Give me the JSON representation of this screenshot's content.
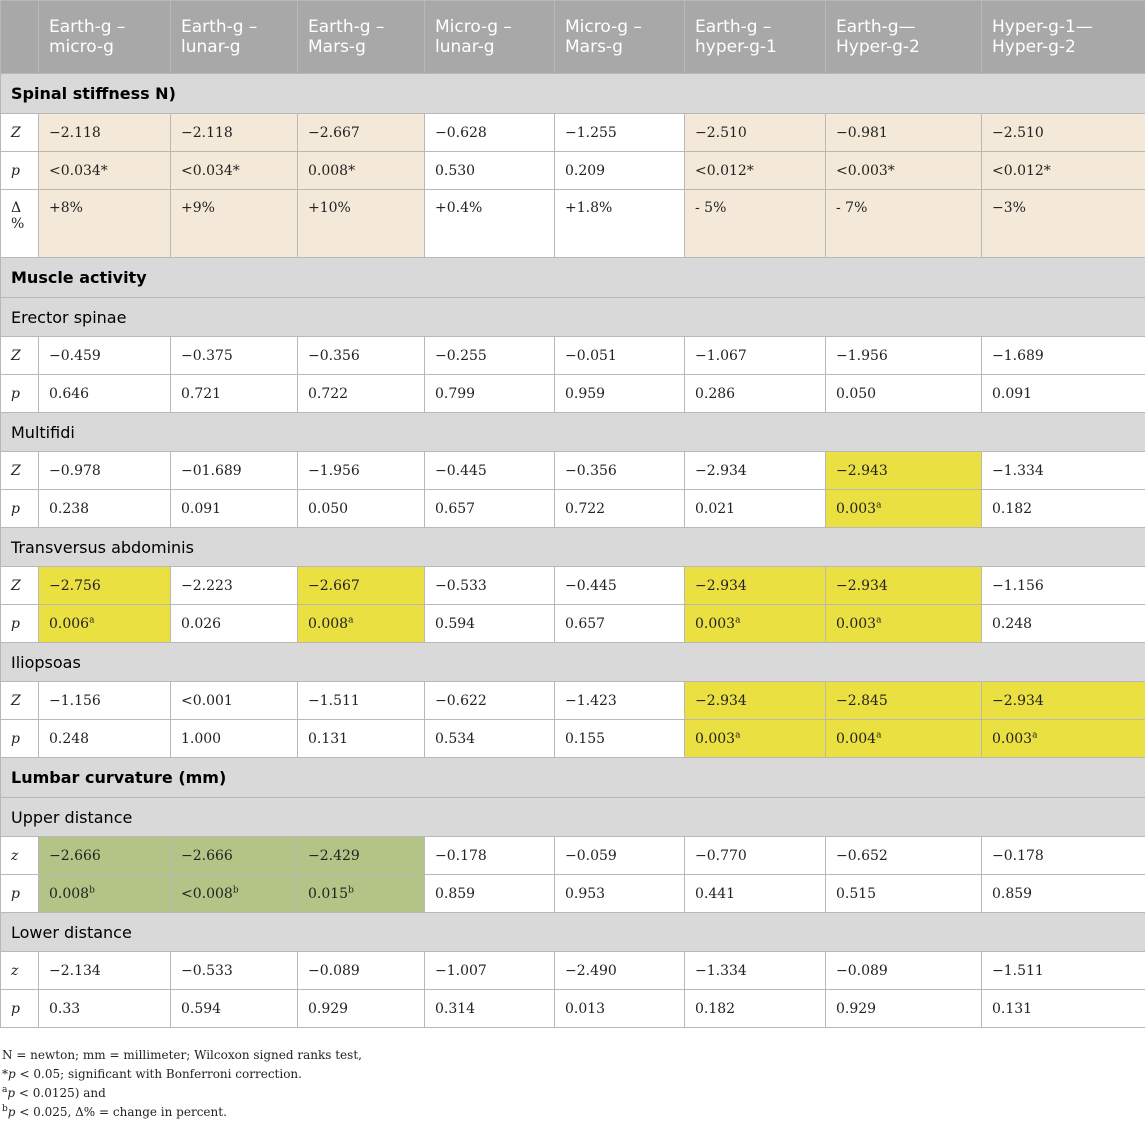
{
  "columns": [
    "",
    "Earth-g – micro-g",
    "Earth-g – lunar-g",
    "Earth-g – Mars-g",
    "Micro-g – lunar-g",
    "Micro-g – Mars-g",
    "Earth-g – hyper-g-1",
    "Earth-g—Hyper-g-2",
    "Hyper-g-1—Hyper-g-2"
  ],
  "sections": {
    "spinal": {
      "title": "Spinal stiffness N)",
      "rows": {
        "z": {
          "label": "Z",
          "values": [
            "−2.118",
            "−2.118",
            "−2.667",
            "−0.628",
            "−1.255",
            "−2.510",
            "−0.981",
            "−2.510"
          ]
        },
        "p": {
          "label": "p",
          "values": [
            "<0.034*",
            "<0.034*",
            "0.008*",
            "0.530",
            "0.209",
            "<0.012*",
            "<0.003*",
            "<0.012*"
          ]
        },
        "delta": {
          "label_symbol": "Δ",
          "label_unit": "%",
          "values": [
            "+8%",
            "+9%",
            "+10%",
            "+0.4%",
            "+1.8%",
            "- 5%",
            "- 7%",
            "−3%"
          ]
        }
      }
    },
    "muscle": {
      "title": "Muscle activity",
      "erector": {
        "title": "Erector spinae",
        "z": {
          "label": "Z",
          "values": [
            "−0.459",
            "−0.375",
            "−0.356",
            "−0.255",
            "−0.051",
            "−1.067",
            "−1.956",
            "−1.689"
          ]
        },
        "p": {
          "label": "p",
          "values": [
            "0.646",
            "0.721",
            "0.722",
            "0.799",
            "0.959",
            "0.286",
            "0.050",
            "0.091"
          ]
        }
      },
      "multifidi": {
        "title": "Multifidi",
        "z": {
          "label": "Z",
          "values": [
            "−0.978",
            "−01.689",
            "−1.956",
            "−0.445",
            "−0.356",
            "−2.934",
            "−2.943",
            "−1.334"
          ]
        },
        "p": {
          "label": "p",
          "values": [
            "0.238",
            "0.091",
            "0.050",
            "0.657",
            "0.722",
            "0.021",
            "0.003",
            "0.182"
          ],
          "marks": [
            "",
            "",
            "",
            "",
            "",
            "",
            "a",
            ""
          ]
        }
      },
      "transversus": {
        "title": "Transversus abdominis",
        "z": {
          "label": "Z",
          "values": [
            "−2.756",
            "−2.223",
            "−2.667",
            "−0.533",
            "−0.445",
            "−2.934",
            "−2.934",
            "−1.156"
          ]
        },
        "p": {
          "label": "p",
          "values": [
            "0.006",
            "0.026",
            "0.008",
            "0.594",
            "0.657",
            "0.003",
            "0.003",
            "0.248"
          ],
          "marks": [
            "a",
            "",
            "a",
            "",
            "",
            "a",
            "a",
            ""
          ]
        }
      },
      "iliopsoas": {
        "title": "Iliopsoas",
        "z": {
          "label": "Z",
          "values": [
            "−1.156",
            "<0.001",
            "−1.511",
            "−0.622",
            "−1.423",
            "−2.934",
            "−2.845",
            "−2.934"
          ]
        },
        "p": {
          "label": "p",
          "values": [
            "0.248",
            "1.000",
            "0.131",
            "0.534",
            "0.155",
            "0.003",
            "0.004",
            "0.003"
          ],
          "marks": [
            "",
            "",
            "",
            "",
            "",
            "a",
            "a",
            "a"
          ]
        }
      }
    },
    "lumbar": {
      "title": "Lumbar curvature (mm)",
      "upper": {
        "title": "Upper distance",
        "z": {
          "label": "z",
          "values": [
            "−2.666",
            "−2.666",
            "−2.429",
            "−0.178",
            "−0.059",
            "−0.770",
            "−0.652",
            "−0.178"
          ]
        },
        "p": {
          "label": "p",
          "values": [
            "0.008",
            "<0.008",
            "0.015",
            "0.859",
            "0.953",
            "0.441",
            "0.515",
            "0.859"
          ],
          "marks": [
            "b",
            "b",
            "b",
            "",
            "",
            "",
            "",
            ""
          ]
        }
      },
      "lower": {
        "title": "Lower distance",
        "z": {
          "label": "z",
          "values": [
            "−2.134",
            "−0.533",
            "−0.089",
            "−1.007",
            "−2.490",
            "−1.334",
            "−0.089",
            "−1.511"
          ]
        },
        "p": {
          "label": "p",
          "values": [
            "0.33",
            "0.594",
            "0.929",
            "0.314",
            "0.013",
            "0.182",
            "0.929",
            "0.131"
          ]
        }
      }
    }
  },
  "highlight_colors": {
    "significant_tan": "#f4e9d8",
    "significant_yellow": "#ebe042",
    "significant_green": "#b4c487",
    "header_gray": "#a8a8a8",
    "section_gray": "#d9d9d9"
  },
  "footnotes": {
    "line1": "N = newton; mm = millimeter; Wilcoxon signed ranks test,",
    "line2_sym": "*",
    "line2_p": "p",
    "line2_rest": " < 0.05; significant with Bonferroni correction.",
    "line3_sup": "a",
    "line3_p": "p",
    "line3_rest": " < 0.0125) and",
    "line4_sup": "b",
    "line4_p": "p",
    "line4_rest": " < 0.025, Δ% = change in percent."
  }
}
